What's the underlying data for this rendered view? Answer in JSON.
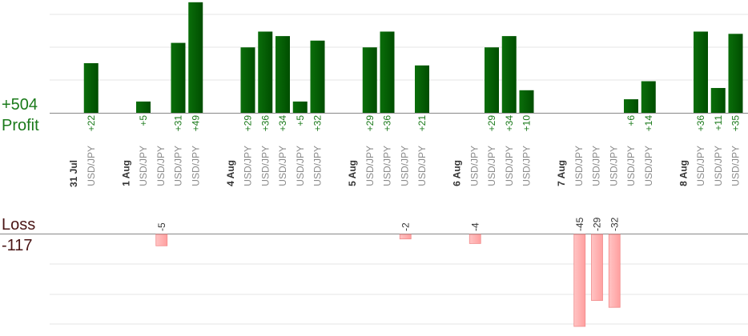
{
  "summary": {
    "profit_total": "+504",
    "profit_label": "Profit",
    "loss_label": "Loss",
    "loss_total": "-117"
  },
  "chart_data": {
    "type": "bar",
    "title": "",
    "xlabel": "",
    "ylabel": "",
    "profit_ylim": [
      0,
      50
    ],
    "loss_ylim": [
      -40,
      0
    ],
    "colors": {
      "profit_bar": "#006400",
      "profit_text": "#1a7a1a",
      "loss_bar": "#ffb3b3",
      "loss_text": "#333333",
      "date_text": "#333333",
      "pair_text": "#8a8a8a",
      "grid": "#e6e6e6",
      "axis": "#888888"
    },
    "columns": [
      {
        "type": "date",
        "label": "31 Jul"
      },
      {
        "type": "trade",
        "label": "USD/JPY",
        "value": 22,
        "text": "+22"
      },
      {
        "type": "spacer"
      },
      {
        "type": "date",
        "label": "1 Aug"
      },
      {
        "type": "trade",
        "label": "USD/JPY",
        "value": 5,
        "text": "+5"
      },
      {
        "type": "trade",
        "label": "USD/JPY",
        "value": -5,
        "text": "-5"
      },
      {
        "type": "trade",
        "label": "USD/JPY",
        "value": 31,
        "text": "+31"
      },
      {
        "type": "trade",
        "label": "USD/JPY",
        "value": 49,
        "text": "+49"
      },
      {
        "type": "spacer"
      },
      {
        "type": "date",
        "label": "4 Aug"
      },
      {
        "type": "trade",
        "label": "USD/JPY",
        "value": 29,
        "text": "+29"
      },
      {
        "type": "trade",
        "label": "USD/JPY",
        "value": 36,
        "text": "+36"
      },
      {
        "type": "trade",
        "label": "USD/JPY",
        "value": 34,
        "text": "+34"
      },
      {
        "type": "trade",
        "label": "USD/JPY",
        "value": 5,
        "text": "+5"
      },
      {
        "type": "trade",
        "label": "USD/JPY",
        "value": 32,
        "text": "+32"
      },
      {
        "type": "spacer"
      },
      {
        "type": "date",
        "label": "5 Aug"
      },
      {
        "type": "trade",
        "label": "USD/JPY",
        "value": 29,
        "text": "+29"
      },
      {
        "type": "trade",
        "label": "USD/JPY",
        "value": 36,
        "text": "+36"
      },
      {
        "type": "trade",
        "label": "USD/JPY",
        "value": -2,
        "text": "-2"
      },
      {
        "type": "trade",
        "label": "USD/JPY",
        "value": 21,
        "text": "+21"
      },
      {
        "type": "spacer"
      },
      {
        "type": "date",
        "label": "6 Aug"
      },
      {
        "type": "trade",
        "label": "USD/JPY",
        "value": -4,
        "text": "-4"
      },
      {
        "type": "trade",
        "label": "USD/JPY",
        "value": 29,
        "text": "+29"
      },
      {
        "type": "trade",
        "label": "USD/JPY",
        "value": 34,
        "text": "+34"
      },
      {
        "type": "trade",
        "label": "USD/JPY",
        "value": 10,
        "text": "+10"
      },
      {
        "type": "spacer"
      },
      {
        "type": "date",
        "label": "7 Aug"
      },
      {
        "type": "trade",
        "label": "USD/JPY",
        "value": -45,
        "text": "-45"
      },
      {
        "type": "trade",
        "label": "USD/JPY",
        "value": -29,
        "text": "-29"
      },
      {
        "type": "trade",
        "label": "USD/JPY",
        "value": -32,
        "text": "-32"
      },
      {
        "type": "trade",
        "label": "USD/JPY",
        "value": 6,
        "text": "+6"
      },
      {
        "type": "trade",
        "label": "USD/JPY",
        "value": 14,
        "text": "+14"
      },
      {
        "type": "spacer"
      },
      {
        "type": "date",
        "label": "8 Aug"
      },
      {
        "type": "trade",
        "label": "USD/JPY",
        "value": 36,
        "text": "+36"
      },
      {
        "type": "trade",
        "label": "USD/JPY",
        "value": 11,
        "text": "+11"
      },
      {
        "type": "trade",
        "label": "USD/JPY",
        "value": 35,
        "text": "+35"
      }
    ]
  }
}
